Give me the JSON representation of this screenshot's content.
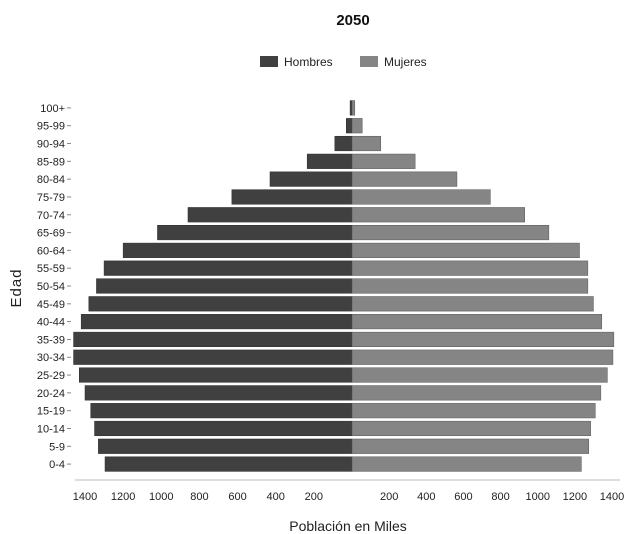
{
  "chart_data": {
    "type": "bar",
    "orientation": "horizontal-population-pyramid",
    "title": "2050",
    "xlabel": "Población en Miles",
    "ylabel": "Edad",
    "legend": {
      "placement": "top-center"
    },
    "categories": [
      "0-4",
      "5-9",
      "10-14",
      "15-19",
      "20-24",
      "25-29",
      "30-34",
      "35-39",
      "40-44",
      "45-49",
      "50-54",
      "55-59",
      "60-64",
      "65-69",
      "70-74",
      "75-79",
      "80-84",
      "85-89",
      "90-94",
      "95-99",
      "100+"
    ],
    "series": [
      {
        "name": "Hombres",
        "color": "#404040",
        "values": [
          1295,
          1330,
          1350,
          1370,
          1400,
          1430,
          1460,
          1460,
          1420,
          1380,
          1340,
          1300,
          1200,
          1020,
          860,
          630,
          430,
          235,
          90,
          30,
          10
        ]
      },
      {
        "name": "Mujeres",
        "color": "#858585",
        "values": [
          1235,
          1275,
          1285,
          1310,
          1340,
          1375,
          1405,
          1410,
          1345,
          1300,
          1270,
          1270,
          1225,
          1060,
          930,
          745,
          565,
          340,
          155,
          55,
          15
        ]
      }
    ],
    "xticks": {
      "left": [
        "1400",
        "1200",
        "1000",
        "800",
        "600",
        "400",
        "200"
      ],
      "right": [
        "200",
        "400",
        "600",
        "800",
        "1000",
        "1200",
        "1400"
      ]
    },
    "xlim": [
      0,
      1400
    ],
    "grid": false
  }
}
